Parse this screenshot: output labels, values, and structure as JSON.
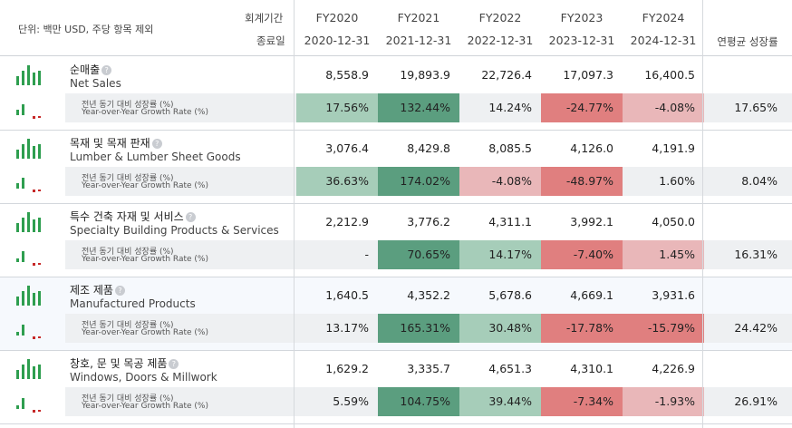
{
  "header": {
    "unit_label": "단위: 백만 USD, 주당 항목 제외",
    "fiscal_period_label": "회계기간",
    "end_date_label": "종료일",
    "years": [
      "FY2020",
      "FY2021",
      "FY2022",
      "FY2023",
      "FY2024"
    ],
    "end_dates": [
      "2020-12-31",
      "2021-12-31",
      "2022-12-31",
      "2023-12-31",
      "2024-12-31"
    ],
    "cagr_label": "연평균 성장률"
  },
  "growth_label_kr": "전년 동기 대비 성장률 (%)",
  "growth_label_en": "Year-over-Year Growth Rate (%)",
  "help_icon_glyph": "?",
  "colors": {
    "strong_green": "#5b9e7f",
    "light_green": "#a6cdb9",
    "light_red": "#e9b7b9",
    "strong_red": "#e07f7f",
    "icon_green": "#2e9e4f",
    "icon_red": "#c62828"
  },
  "segments": [
    {
      "name_kr": "순매출",
      "name_en": "Net Sales",
      "values": [
        "8,558.9",
        "19,893.9",
        "22,726.4",
        "17,097.3",
        "16,400.5"
      ],
      "growth": [
        "17.56%",
        "132.44%",
        "14.24%",
        "-24.77%",
        "-4.08%"
      ],
      "growth_levels": [
        "light_green",
        "strong_green",
        "none",
        "strong_red",
        "light_red"
      ],
      "cagr": "17.65%"
    },
    {
      "name_kr": "목재 및 목재 판재",
      "name_en": "Lumber & Lumber Sheet Goods",
      "values": [
        "3,076.4",
        "8,429.8",
        "8,085.5",
        "4,126.0",
        "4,191.9"
      ],
      "growth": [
        "36.63%",
        "174.02%",
        "-4.08%",
        "-48.97%",
        "1.60%"
      ],
      "growth_levels": [
        "light_green",
        "strong_green",
        "light_red",
        "strong_red",
        "none"
      ],
      "cagr": "8.04%"
    },
    {
      "name_kr": "특수 건축 자재 및 서비스",
      "name_en": "Specialty Building Products & Services",
      "values": [
        "2,212.9",
        "3,776.2",
        "4,311.1",
        "3,992.1",
        "4,050.0"
      ],
      "growth": [
        "-",
        "70.65%",
        "14.17%",
        "-7.40%",
        "1.45%"
      ],
      "growth_levels": [
        "none",
        "strong_green",
        "light_green",
        "strong_red",
        "light_red"
      ],
      "cagr": "16.31%"
    },
    {
      "name_kr": "제조 제품",
      "name_en": "Manufactured Products",
      "values": [
        "1,640.5",
        "4,352.2",
        "5,678.6",
        "4,669.1",
        "3,931.6"
      ],
      "growth": [
        "13.17%",
        "165.31%",
        "30.48%",
        "-17.78%",
        "-15.79%"
      ],
      "growth_levels": [
        "none",
        "strong_green",
        "light_green",
        "strong_red",
        "strong_red"
      ],
      "cagr": "24.42%"
    },
    {
      "name_kr": "창호, 문 및 목공 제품",
      "name_en": "Windows, Doors & Millwork",
      "values": [
        "1,629.2",
        "3,335.7",
        "4,651.3",
        "4,310.1",
        "4,226.9"
      ],
      "growth": [
        "5.59%",
        "104.75%",
        "39.44%",
        "-7.34%",
        "-1.93%"
      ],
      "growth_levels": [
        "none",
        "strong_green",
        "light_green",
        "strong_red",
        "light_red"
      ],
      "cagr": "26.91%"
    }
  ]
}
